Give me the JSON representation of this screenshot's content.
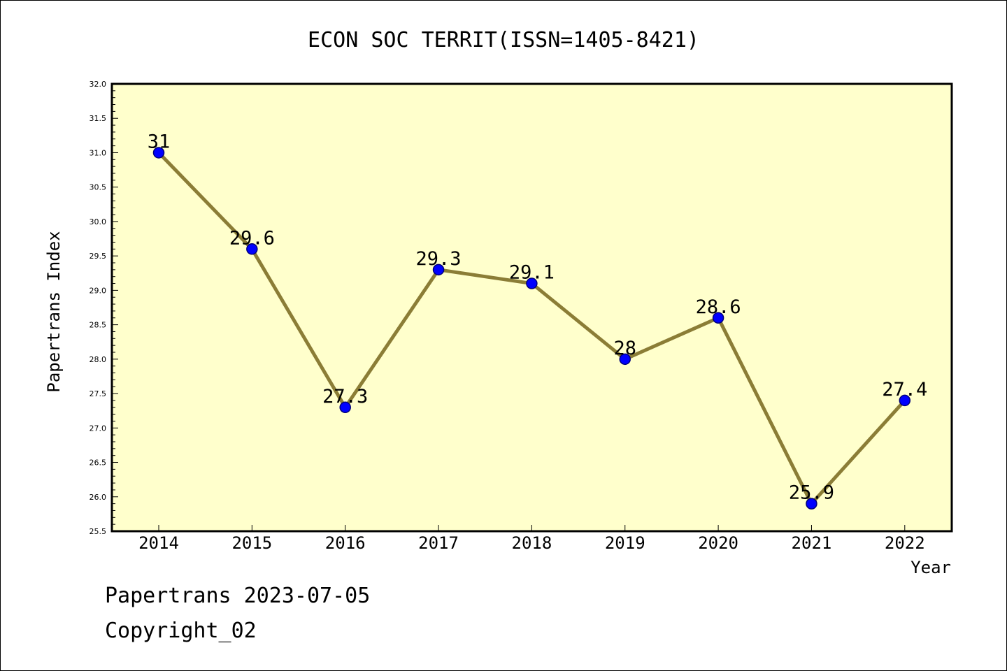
{
  "chart_data": {
    "type": "line",
    "title": "ECON SOC TERRIT(ISSN=1405-8421)",
    "xlabel": "Year",
    "ylabel": "Papertrans Index",
    "categories": [
      "2014",
      "2015",
      "2016",
      "2017",
      "2018",
      "2019",
      "2020",
      "2021",
      "2022"
    ],
    "series": [
      {
        "values": [
          31,
          29.6,
          27.3,
          29.3,
          29.1,
          28,
          28.6,
          25.9,
          27.4
        ]
      }
    ],
    "data_labels": [
      "31",
      "29.6",
      "27.3",
      "29.3",
      "29.1",
      "28",
      "28.6",
      "25.9",
      "27.4"
    ],
    "ylim": [
      25.5,
      32.0
    ],
    "y_ticks": [
      "25.5",
      "26.0",
      "26.5",
      "27.0",
      "27.5",
      "28.0",
      "28.5",
      "29.0",
      "29.5",
      "30.0",
      "30.5",
      "31.0",
      "31.5",
      "32.0"
    ],
    "grid": false,
    "legend": "none",
    "colors": {
      "plot_background": "#ffffcc",
      "line": "#8b7d36",
      "marker_fill": "#0000ff",
      "marker_stroke": "#00007a"
    }
  },
  "footer": {
    "line1": "Papertrans 2023-07-05",
    "line2": "Copyright_02"
  }
}
